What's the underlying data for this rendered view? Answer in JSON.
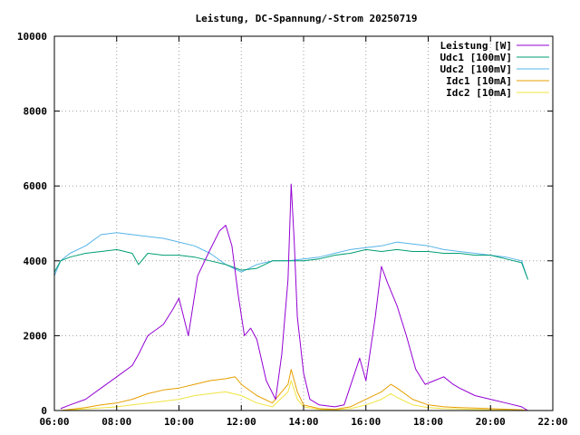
{
  "chart_data": {
    "type": "line",
    "title": "Leistung, DC-Spannung/-Strom 20250719",
    "xlabel": "",
    "ylabel": "",
    "xlim": [
      6,
      22
    ],
    "ylim": [
      0,
      10000
    ],
    "grid": true,
    "legend_position": "top-right",
    "x_ticks": [
      "06:00",
      "08:00",
      "10:00",
      "12:00",
      "14:00",
      "16:00",
      "18:00",
      "20:00",
      "22:00"
    ],
    "y_ticks": [
      "0",
      "2000",
      "4000",
      "6000",
      "8000",
      "10000"
    ],
    "series": [
      {
        "name": "Leistung [W]",
        "color": "#9400d3",
        "x": [
          6.2,
          6.5,
          7.0,
          7.5,
          8.0,
          8.5,
          8.7,
          9.0,
          9.5,
          9.8,
          10.0,
          10.3,
          10.6,
          11.0,
          11.3,
          11.5,
          11.7,
          11.9,
          12.1,
          12.3,
          12.5,
          12.8,
          13.1,
          13.3,
          13.5,
          13.6,
          13.7,
          13.8,
          14.0,
          14.2,
          14.5,
          15.0,
          15.3,
          15.6,
          15.8,
          16.0,
          16.3,
          16.5,
          16.7,
          17.0,
          17.3,
          17.6,
          17.9,
          18.2,
          18.5,
          18.8,
          19.0,
          19.5,
          20.0,
          20.5,
          21.0,
          21.2
        ],
        "values": [
          50,
          150,
          300,
          600,
          900,
          1200,
          1500,
          2000,
          2300,
          2700,
          3000,
          2000,
          3600,
          4300,
          4800,
          4950,
          4400,
          3100,
          2000,
          2200,
          1900,
          800,
          300,
          1500,
          3500,
          6050,
          4500,
          2500,
          1000,
          300,
          150,
          100,
          150,
          900,
          1400,
          800,
          2500,
          3850,
          3400,
          2800,
          2000,
          1100,
          700,
          800,
          900,
          700,
          600,
          400,
          300,
          200,
          100,
          0
        ]
      },
      {
        "name": "Udc1 [100mV]",
        "color": "#009e73",
        "x": [
          6.0,
          6.2,
          6.5,
          7.0,
          7.5,
          8.0,
          8.5,
          8.7,
          9.0,
          9.5,
          10.0,
          10.5,
          11.0,
          11.5,
          12.0,
          12.5,
          13.0,
          13.5,
          14.0,
          14.5,
          15.0,
          15.5,
          16.0,
          16.5,
          17.0,
          17.5,
          18.0,
          18.5,
          19.0,
          19.5,
          20.0,
          20.5,
          21.0,
          21.2
        ],
        "values": [
          3700,
          4000,
          4100,
          4200,
          4250,
          4300,
          4200,
          3900,
          4200,
          4150,
          4150,
          4100,
          4000,
          3900,
          3750,
          3800,
          4000,
          4000,
          4000,
          4050,
          4150,
          4200,
          4300,
          4250,
          4300,
          4250,
          4250,
          4200,
          4200,
          4150,
          4150,
          4050,
          3950,
          3500
        ]
      },
      {
        "name": "Udc2 [100mV]",
        "color": "#56b4e9",
        "x": [
          6.0,
          6.2,
          6.5,
          7.0,
          7.5,
          8.0,
          8.5,
          9.0,
          9.5,
          10.0,
          10.5,
          11.0,
          11.5,
          12.0,
          12.5,
          13.0,
          13.5,
          14.0,
          14.5,
          15.0,
          15.5,
          16.0,
          16.5,
          17.0,
          17.5,
          18.0,
          18.5,
          19.0,
          19.5,
          20.0,
          20.5,
          21.0,
          21.2
        ],
        "values": [
          3600,
          4000,
          4200,
          4400,
          4700,
          4750,
          4700,
          4650,
          4600,
          4500,
          4400,
          4200,
          3900,
          3700,
          3900,
          4000,
          4000,
          4050,
          4100,
          4200,
          4300,
          4350,
          4400,
          4500,
          4450,
          4400,
          4300,
          4250,
          4200,
          4150,
          4100,
          4000,
          3500
        ]
      },
      {
        "name": "Idc1 [10mA]",
        "color": "#e69f00",
        "x": [
          6.2,
          7.0,
          7.5,
          8.0,
          8.5,
          9.0,
          9.5,
          10.0,
          10.5,
          11.0,
          11.5,
          11.8,
          12.0,
          12.5,
          13.0,
          13.5,
          13.6,
          13.8,
          14.0,
          14.5,
          15.0,
          15.5,
          16.0,
          16.5,
          16.8,
          17.0,
          17.5,
          18.0,
          18.5,
          19.0,
          20.0,
          21.0,
          21.2
        ],
        "values": [
          0,
          80,
          150,
          200,
          300,
          450,
          550,
          600,
          700,
          800,
          850,
          900,
          700,
          400,
          200,
          700,
          1100,
          500,
          150,
          50,
          30,
          100,
          300,
          500,
          700,
          600,
          300,
          150,
          100,
          80,
          50,
          20,
          0
        ]
      },
      {
        "name": "Idc2 [10mA]",
        "color": "#f0e442",
        "x": [
          6.2,
          7.0,
          8.0,
          8.5,
          9.0,
          9.5,
          10.0,
          10.5,
          11.0,
          11.5,
          12.0,
          12.5,
          13.0,
          13.5,
          13.6,
          13.8,
          14.0,
          14.5,
          15.0,
          15.5,
          16.0,
          16.5,
          16.8,
          17.0,
          17.5,
          18.0,
          18.5,
          19.0,
          20.0,
          21.0,
          21.2
        ],
        "values": [
          0,
          40,
          100,
          150,
          200,
          250,
          300,
          400,
          450,
          500,
          400,
          200,
          100,
          500,
          800,
          300,
          100,
          30,
          20,
          50,
          150,
          300,
          450,
          350,
          150,
          80,
          50,
          40,
          20,
          10,
          0
        ]
      }
    ]
  }
}
